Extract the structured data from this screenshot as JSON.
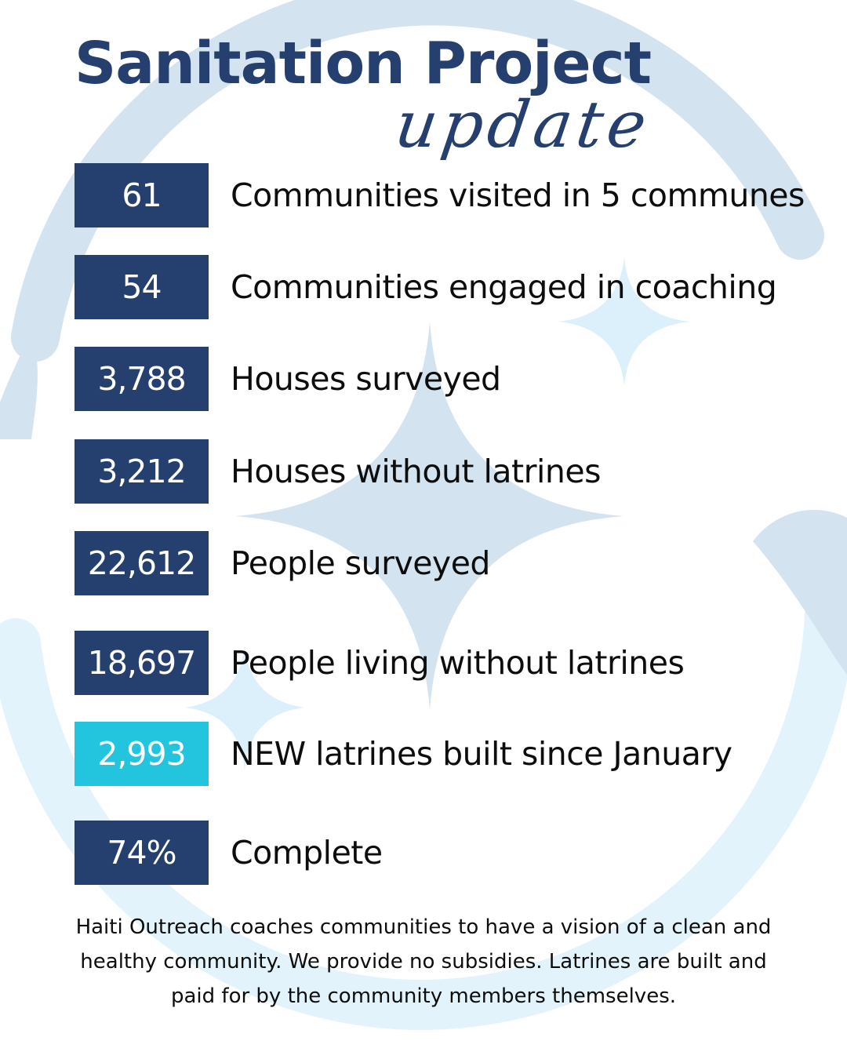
{
  "title": "Sanitation Project",
  "subtitle": "update",
  "stats": [
    {
      "value": "61",
      "label": "Communities visited in 5 communes"
    },
    {
      "value": "54",
      "label": "Communities engaged in coaching"
    },
    {
      "value": "3,788",
      "label": "Houses surveyed"
    },
    {
      "value": "3,212",
      "label": "Houses without latrines"
    },
    {
      "value": "22,612",
      "label": "People surveyed"
    },
    {
      "value": "18,697",
      "label": "People living without latrines"
    },
    {
      "value": "2,993",
      "label": "NEW latrines built since January"
    },
    {
      "value": "74%",
      "label": "Complete"
    }
  ],
  "footer": "Haiti Outreach coaches communities to have a vision of a clean and healthy community. We provide no subsidies. Latrines are built and paid for by the community members themselves.",
  "colors": {
    "navy": "#253f6e",
    "highlight": "#22c4de",
    "background_light_blue": "#d3e4f0",
    "background_pale_blue": "#e3f3fb"
  }
}
